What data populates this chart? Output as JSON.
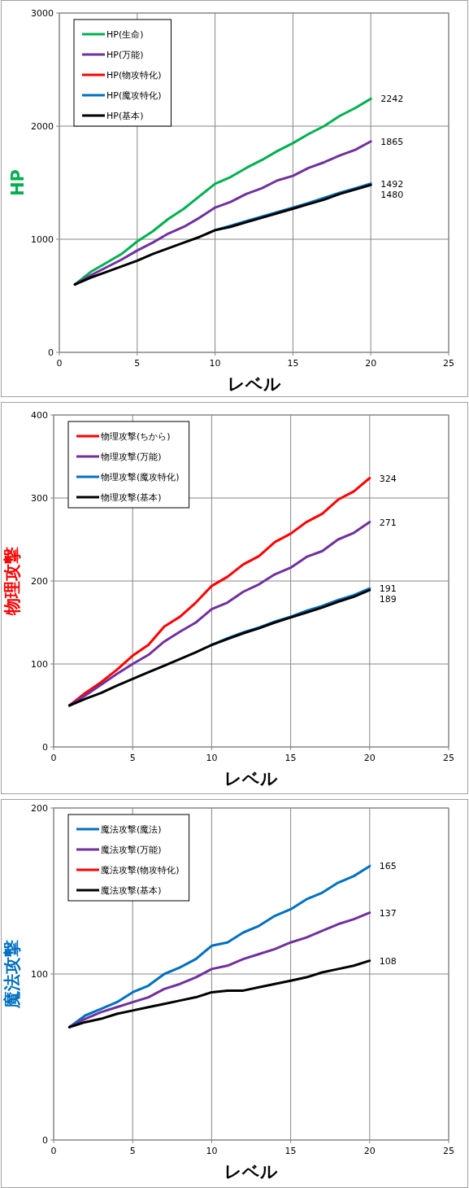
{
  "chart_data": [
    {
      "type": "line",
      "xlabel": "レベル",
      "ylabel": "HP",
      "x": [
        1,
        2,
        3,
        4,
        5,
        6,
        7,
        8,
        9,
        10,
        11,
        12,
        13,
        14,
        15,
        16,
        17,
        18,
        19,
        20
      ],
      "xlim": [
        0,
        25
      ],
      "xticks": [
        0,
        5,
        10,
        15,
        20,
        25
      ],
      "ylim": [
        0,
        3000
      ],
      "yticks": [
        0,
        1000,
        2000,
        3000
      ],
      "grid": true,
      "legend": "top left",
      "marker": "none",
      "line_style": "solid",
      "series": [
        {
          "name": "HP(生命)",
          "color": "#00b050",
          "values": [
            600,
            710,
            790,
            870,
            980,
            1070,
            1180,
            1270,
            1380,
            1490,
            1550,
            1630,
            1700,
            1780,
            1850,
            1930,
            2000,
            2090,
            2160,
            2242
          ],
          "value_labels": [
            null,
            null,
            null,
            null,
            null,
            null,
            null,
            null,
            null,
            null,
            null,
            null,
            null,
            null,
            null,
            null,
            null,
            null,
            null,
            "2242"
          ]
        },
        {
          "name": "HP(万能)",
          "color": "#7030a0",
          "values": [
            600,
            680,
            750,
            820,
            900,
            970,
            1050,
            1110,
            1190,
            1280,
            1330,
            1400,
            1450,
            1520,
            1560,
            1630,
            1680,
            1740,
            1790,
            1865
          ],
          "value_labels": [
            null,
            null,
            null,
            null,
            null,
            null,
            null,
            null,
            null,
            null,
            null,
            null,
            null,
            null,
            null,
            null,
            null,
            null,
            null,
            "1865"
          ]
        },
        {
          "name": "HP(物攻特化)",
          "color": "#ff0000",
          "values": [
            null,
            null,
            null,
            null,
            null,
            null,
            null,
            null,
            null,
            null,
            null,
            null,
            null,
            null,
            null,
            null,
            null,
            null,
            null,
            null
          ]
        },
        {
          "name": "HP(魔攻特化)",
          "color": "#0070c0",
          "values": [
            null,
            null,
            null,
            null,
            null,
            null,
            null,
            null,
            null,
            1080,
            1120,
            1160,
            1200,
            1240,
            1280,
            1320,
            1365,
            1410,
            1450,
            1492
          ],
          "value_labels": [
            null,
            null,
            null,
            null,
            null,
            null,
            null,
            null,
            null,
            null,
            null,
            null,
            null,
            null,
            null,
            null,
            null,
            null,
            null,
            "1492"
          ]
        },
        {
          "name": "HP(基本)",
          "color": "#000000",
          "values": [
            600,
            660,
            710,
            760,
            810,
            870,
            920,
            970,
            1020,
            1080,
            1110,
            1150,
            1190,
            1230,
            1270,
            1310,
            1350,
            1400,
            1440,
            1480
          ],
          "value_labels": [
            null,
            null,
            null,
            null,
            null,
            null,
            null,
            null,
            null,
            null,
            null,
            null,
            null,
            null,
            null,
            null,
            null,
            null,
            null,
            "1480"
          ]
        }
      ]
    },
    {
      "type": "line",
      "xlabel": "レベル",
      "ylabel": "物理攻撃",
      "x": [
        1,
        2,
        3,
        4,
        5,
        6,
        7,
        8,
        9,
        10,
        11,
        12,
        13,
        14,
        15,
        16,
        17,
        18,
        19,
        20
      ],
      "xlim": [
        0,
        25
      ],
      "xticks": [
        0,
        5,
        10,
        15,
        20,
        25
      ],
      "ylim": [
        0,
        400
      ],
      "yticks": [
        0,
        100,
        200,
        300,
        400
      ],
      "grid": true,
      "legend": "top left",
      "marker": "none",
      "line_style": "solid",
      "series": [
        {
          "name": "物理攻撃(ちから)",
          "color": "#ff0000",
          "values": [
            50,
            65,
            78,
            93,
            110,
            123,
            145,
            157,
            174,
            194,
            205,
            220,
            230,
            247,
            257,
            271,
            281,
            298,
            308,
            324
          ],
          "value_labels": [
            null,
            null,
            null,
            null,
            null,
            null,
            null,
            null,
            null,
            null,
            null,
            null,
            null,
            null,
            null,
            null,
            null,
            null,
            null,
            "324"
          ]
        },
        {
          "name": "物理攻撃(万能)",
          "color": "#7030a0",
          "values": [
            50,
            62,
            75,
            88,
            100,
            111,
            127,
            139,
            150,
            166,
            174,
            187,
            196,
            208,
            216,
            229,
            236,
            250,
            258,
            271
          ],
          "value_labels": [
            null,
            null,
            null,
            null,
            null,
            null,
            null,
            null,
            null,
            null,
            null,
            null,
            null,
            null,
            null,
            null,
            null,
            null,
            null,
            "271"
          ]
        },
        {
          "name": "物理攻撃(魔攻特化)",
          "color": "#0070c0",
          "values": [
            null,
            null,
            null,
            null,
            null,
            null,
            null,
            null,
            null,
            123,
            131,
            138,
            144,
            151,
            157,
            164,
            170,
            177,
            183,
            191
          ],
          "value_labels": [
            null,
            null,
            null,
            null,
            null,
            null,
            null,
            null,
            null,
            null,
            null,
            null,
            null,
            null,
            null,
            null,
            null,
            null,
            null,
            "191"
          ]
        },
        {
          "name": "物理攻撃(基本)",
          "color": "#000000",
          "values": [
            50,
            58,
            65,
            74,
            82,
            90,
            98,
            106,
            114,
            123,
            130,
            137,
            143,
            150,
            156,
            162,
            168,
            175,
            181,
            189
          ],
          "value_labels": [
            null,
            null,
            null,
            null,
            null,
            null,
            null,
            null,
            null,
            null,
            null,
            null,
            null,
            null,
            null,
            null,
            null,
            null,
            null,
            "189"
          ]
        }
      ]
    },
    {
      "type": "line",
      "xlabel": "レベル",
      "ylabel": "魔法攻撃",
      "x": [
        1,
        2,
        3,
        4,
        5,
        6,
        7,
        8,
        9,
        10,
        11,
        12,
        13,
        14,
        15,
        16,
        17,
        18,
        19,
        20
      ],
      "xlim": [
        0,
        25
      ],
      "xticks": [
        0,
        5,
        10,
        15,
        20,
        25
      ],
      "ylim": [
        0,
        200
      ],
      "yticks": [
        0,
        100,
        200
      ],
      "grid": true,
      "legend": "top left",
      "marker": "none",
      "line_style": "solid",
      "series": [
        {
          "name": "魔法攻撃(魔法)",
          "color": "#0070c0",
          "values": [
            68,
            75,
            79,
            83,
            89,
            93,
            100,
            104,
            109,
            117,
            119,
            125,
            129,
            135,
            139,
            145,
            149,
            155,
            159,
            165
          ],
          "value_labels": [
            null,
            null,
            null,
            null,
            null,
            null,
            null,
            null,
            null,
            null,
            null,
            null,
            null,
            null,
            null,
            null,
            null,
            null,
            null,
            "165"
          ]
        },
        {
          "name": "魔法攻撃(万能)",
          "color": "#7030a0",
          "values": [
            68,
            73,
            77,
            80,
            83,
            86,
            91,
            94,
            98,
            103,
            105,
            109,
            112,
            115,
            119,
            122,
            126,
            130,
            133,
            137
          ],
          "value_labels": [
            null,
            null,
            null,
            null,
            null,
            null,
            null,
            null,
            null,
            null,
            null,
            null,
            null,
            null,
            null,
            null,
            null,
            null,
            null,
            "137"
          ]
        },
        {
          "name": "魔法攻撃(物攻特化)",
          "color": "#ff0000",
          "values": [
            null,
            null,
            null,
            null,
            null,
            null,
            null,
            null,
            null,
            null,
            null,
            null,
            null,
            null,
            null,
            null,
            null,
            null,
            null,
            null
          ]
        },
        {
          "name": "魔法攻撃(基本)",
          "color": "#000000",
          "values": [
            68,
            71,
            73,
            76,
            78,
            80,
            82,
            84,
            86,
            89,
            90,
            90,
            92,
            94,
            96,
            98,
            101,
            103,
            105,
            108
          ],
          "value_labels": [
            null,
            null,
            null,
            null,
            null,
            null,
            null,
            null,
            null,
            null,
            null,
            null,
            null,
            null,
            null,
            null,
            null,
            null,
            null,
            "108"
          ]
        }
      ]
    }
  ]
}
